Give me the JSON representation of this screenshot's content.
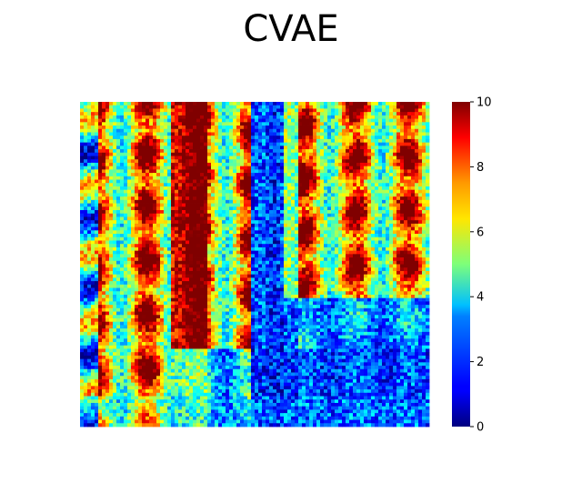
{
  "chart_data": {
    "type": "heatmap",
    "title": "CVAE",
    "xlabel": "",
    "ylabel": "",
    "colormap": "jet",
    "colorbar": {
      "vmin": 0,
      "vmax": 10,
      "ticks": [
        "0",
        "2",
        "4",
        "6",
        "8",
        "10"
      ]
    },
    "grid": false,
    "axes_visible": false,
    "grid_size": [
      96,
      96
    ],
    "description_of_pattern": "",
    "values_note": ""
  }
}
